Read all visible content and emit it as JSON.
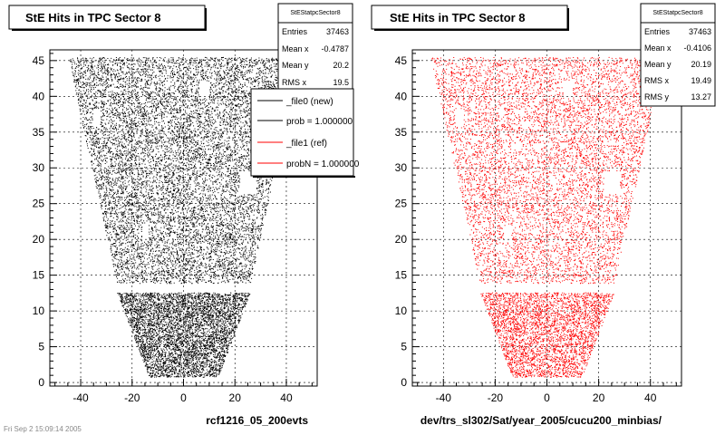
{
  "footer": "Fri Sep 2 15:09:14 2005",
  "chart_data": [
    {
      "type": "scatter",
      "title": "StE Hits in TPC Sector 8",
      "xlabel": "rcf1216_05_200evts",
      "ylabel": "",
      "xlim": [
        -52,
        52
      ],
      "ylim": [
        -0.5,
        46.5
      ],
      "xticks": [
        -40,
        -20,
        0,
        20,
        40
      ],
      "yticks": [
        0,
        5,
        10,
        15,
        20,
        25,
        30,
        35,
        40,
        45
      ],
      "color": "#000000",
      "grid": true,
      "stats": {
        "title": "StEStatpcSector8",
        "rows": [
          {
            "label": "Entries",
            "value": "37463"
          },
          {
            "label": "Mean x",
            "value": "-0.4787"
          },
          {
            "label": "Mean y",
            "value": "20.2"
          },
          {
            "label": "RMS x",
            "value": "19.5"
          }
        ]
      },
      "legend": {
        "placement": "top-right",
        "entries": [
          {
            "label": "_file0 (new)",
            "color": "#000000"
          },
          {
            "label": "prob = 1.000000",
            "color": "#000000"
          },
          {
            "label": "_file1 (ref)",
            "color": "#ff0000"
          },
          {
            "label": "probN = 1.000000",
            "color": "#ff0000"
          }
        ]
      }
    },
    {
      "type": "scatter",
      "title": "StE Hits in TPC Sector 8",
      "xlabel": "dev/trs_sl302/Sat/year_2005/cucu200_minbias/",
      "ylabel": "",
      "xlim": [
        -52,
        52
      ],
      "ylim": [
        -0.5,
        46.5
      ],
      "xticks": [
        -40,
        -20,
        0,
        20,
        40
      ],
      "yticks": [
        0,
        5,
        10,
        15,
        20,
        25,
        30,
        35,
        40,
        45
      ],
      "color": "#ff0000",
      "grid": true,
      "stats": {
        "title": "StEStatpcSector8",
        "rows": [
          {
            "label": "Entries",
            "value": "37463"
          },
          {
            "label": "Mean x",
            "value": "-0.4106"
          },
          {
            "label": "Mean y",
            "value": "20.19"
          },
          {
            "label": "RMS x",
            "value": "19.49"
          },
          {
            "label": "RMS y",
            "value": "13.27"
          }
        ]
      }
    }
  ]
}
